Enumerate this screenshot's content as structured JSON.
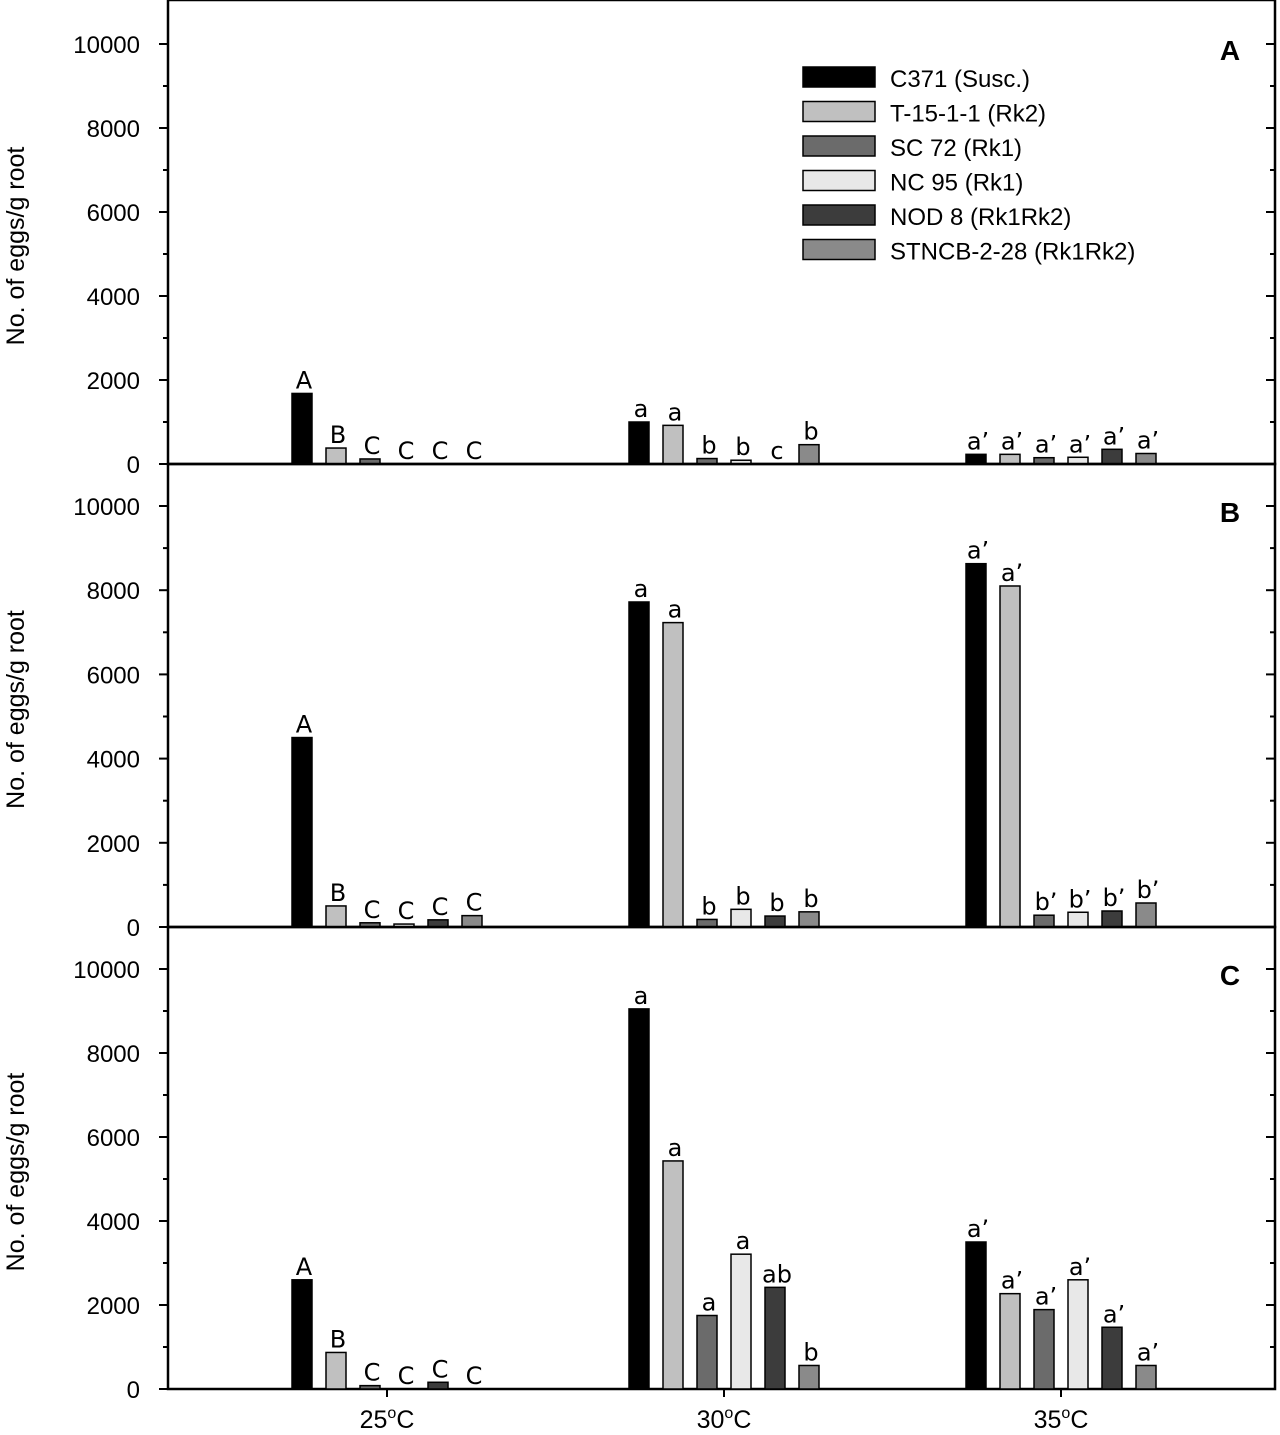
{
  "chart_data": [
    {
      "type": "bar",
      "panel": "A",
      "ylabel": "No. of eggs/g root",
      "ylim": [
        0,
        10000
      ],
      "yticks": [
        0,
        2000,
        4000,
        6000,
        8000,
        10000
      ],
      "categories": [
        "25oC",
        "30oC",
        "35oC"
      ],
      "series": [
        {
          "name": "C371 (Susc.)",
          "values": [
            1680,
            1000,
            230
          ],
          "labels": [
            "A",
            "a",
            "a’"
          ]
        },
        {
          "name": "T-15-1-1 (Rk2)",
          "values": [
            380,
            920,
            230
          ],
          "labels": [
            "B",
            "a",
            "a’"
          ]
        },
        {
          "name": "SC 72 (Rk1)",
          "values": [
            120,
            130,
            150
          ],
          "labels": [
            "C",
            "b",
            "a’"
          ]
        },
        {
          "name": "NC 95 (Rk1)",
          "values": [
            0,
            90,
            160
          ],
          "labels": [
            "C",
            "b",
            "a’"
          ]
        },
        {
          "name": "NOD 8 (Rk1Rk2)",
          "values": [
            0,
            0,
            350
          ],
          "labels": [
            "C",
            "c",
            "a’"
          ]
        },
        {
          "name": "STNCB-2-28 (Rk1Rk2)",
          "values": [
            0,
            460,
            250
          ],
          "labels": [
            "C",
            "b",
            "a’"
          ]
        }
      ]
    },
    {
      "type": "bar",
      "panel": "B",
      "ylabel": "No. of eggs/g root",
      "ylim": [
        0,
        10000
      ],
      "yticks": [
        0,
        2000,
        4000,
        6000,
        8000,
        10000
      ],
      "categories": [
        "25oC",
        "30oC",
        "35oC"
      ],
      "series": [
        {
          "name": "C371 (Susc.)",
          "values": [
            4500,
            7720,
            8630
          ],
          "labels": [
            "A",
            "a",
            "a’"
          ]
        },
        {
          "name": "T-15-1-1 (Rk2)",
          "values": [
            500,
            7230,
            8100
          ],
          "labels": [
            "B",
            "a",
            "a’"
          ]
        },
        {
          "name": "SC 72 (Rk1)",
          "values": [
            100,
            180,
            280
          ],
          "labels": [
            "C",
            "b",
            "b’"
          ]
        },
        {
          "name": "NC 95 (Rk1)",
          "values": [
            70,
            420,
            350
          ],
          "labels": [
            "C",
            "b",
            "b’"
          ]
        },
        {
          "name": "NOD 8 (Rk1Rk2)",
          "values": [
            170,
            260,
            380
          ],
          "labels": [
            "C",
            "b",
            "b’"
          ]
        },
        {
          "name": "STNCB-2-28 (Rk1Rk2)",
          "values": [
            270,
            360,
            570
          ],
          "labels": [
            "C",
            "b",
            "b’"
          ]
        }
      ]
    },
    {
      "type": "bar",
      "panel": "C",
      "ylabel": "No. of eggs/g root",
      "ylim": [
        0,
        10000
      ],
      "yticks": [
        0,
        2000,
        4000,
        6000,
        8000,
        10000
      ],
      "categories": [
        "25oC",
        "30oC",
        "35oC"
      ],
      "series": [
        {
          "name": "C371 (Susc.)",
          "values": [
            2600,
            9050,
            3500
          ],
          "labels": [
            "A",
            "a",
            "a’"
          ]
        },
        {
          "name": "T-15-1-1 (Rk2)",
          "values": [
            870,
            5430,
            2270
          ],
          "labels": [
            "B",
            "a",
            "a’"
          ]
        },
        {
          "name": "SC 72 (Rk1)",
          "values": [
            80,
            1750,
            1890
          ],
          "labels": [
            "C",
            "a",
            "a’"
          ]
        },
        {
          "name": "NC 95 (Rk1)",
          "values": [
            0,
            3210,
            2600
          ],
          "labels": [
            "C",
            "a",
            "a’"
          ]
        },
        {
          "name": "NOD 8 (Rk1Rk2)",
          "values": [
            160,
            2420,
            1470
          ],
          "labels": [
            "C",
            "ab",
            "a’"
          ]
        },
        {
          "name": "STNCB-2-28 (Rk1Rk2)",
          "values": [
            0,
            560,
            560
          ],
          "labels": [
            "C",
            "b",
            "a’"
          ]
        }
      ]
    }
  ],
  "legend": {
    "entries": [
      {
        "label": "C371 (Susc.)",
        "color": "#000000"
      },
      {
        "label": "T-15-1-1 (Rk2)",
        "color": "#c0c0c0"
      },
      {
        "label": "SC 72 (Rk1)",
        "color": "#6b6b6b"
      },
      {
        "label": "NC 95 (Rk1)",
        "color": "#e8e8e8"
      },
      {
        "label": "NOD 8 (Rk1Rk2)",
        "color": "#3c3c3c"
      },
      {
        "label": "STNCB-2-28 (Rk1Rk2)",
        "color": "#8a8a8a"
      }
    ]
  },
  "x_axis": {
    "labels": [
      {
        "base": "25",
        "sup": "o",
        "unit": "C"
      },
      {
        "base": "30",
        "sup": "o",
        "unit": "C"
      },
      {
        "base": "35",
        "sup": "o",
        "unit": "C"
      }
    ]
  }
}
